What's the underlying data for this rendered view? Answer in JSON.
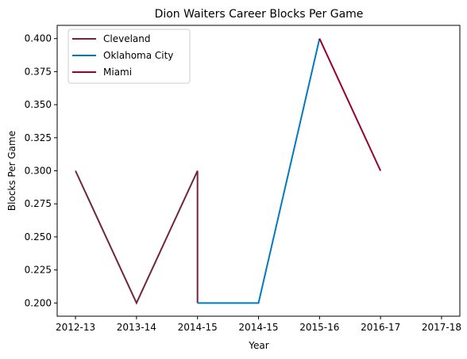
{
  "chart_data": {
    "type": "line",
    "title": "Dion Waiters Career Blocks Per Game",
    "xlabel": "Year",
    "ylabel": "Blocks Per Game",
    "x_categories": [
      "2012-13",
      "2013-14",
      "2014-15",
      "2014-15",
      "2015-16",
      "2016-17",
      "2017-18"
    ],
    "xlim": [
      -0.3,
      6.3
    ],
    "ylim": [
      0.19,
      0.41
    ],
    "yticks": [
      0.2,
      0.225,
      0.25,
      0.275,
      0.3,
      0.325,
      0.35,
      0.375,
      0.4
    ],
    "ytick_labels": [
      "0.200",
      "0.225",
      "0.250",
      "0.275",
      "0.300",
      "0.325",
      "0.350",
      "0.375",
      "0.400"
    ],
    "grid": false,
    "legend_position": "top-left",
    "series": [
      {
        "name": "Cleveland",
        "color": "#6f263d",
        "points": [
          {
            "x": 0,
            "y": 0.3
          },
          {
            "x": 1,
            "y": 0.2
          },
          {
            "x": 2,
            "y": 0.3
          },
          {
            "x": 2,
            "y": 0.2
          }
        ]
      },
      {
        "name": "Oklahoma City",
        "color": "#007ac1",
        "points": [
          {
            "x": 2,
            "y": 0.2
          },
          {
            "x": 3,
            "y": 0.2
          },
          {
            "x": 4,
            "y": 0.4
          }
        ]
      },
      {
        "name": "Miami",
        "color": "#98002e",
        "points": [
          {
            "x": 4,
            "y": 0.4
          },
          {
            "x": 5,
            "y": 0.3
          }
        ]
      }
    ]
  }
}
